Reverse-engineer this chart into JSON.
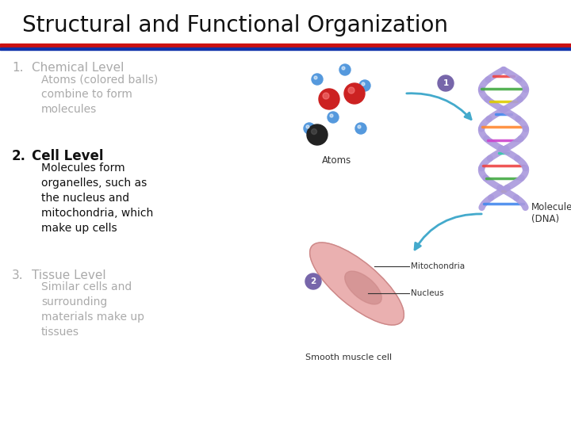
{
  "title": "Structural and Functional Organization",
  "title_fontsize": 20,
  "title_color": "#111111",
  "bg_color": "#ffffff",
  "line1_color": "#cc1111",
  "line2_color": "#1133aa",
  "item1_num": "1.",
  "item1_head": "Chemical Level",
  "item1_body": "Atoms (colored balls)\ncombine to form\nmolecules",
  "item1_color": "#aaaaaa",
  "item2_num": "2.",
  "item2_head": "Cell Level",
  "item2_body": "Molecules form\norganelles, such as\nthe nucleus and\nmitochondria, which\nmake up cells",
  "item2_color": "#111111",
  "item3_num": "3.",
  "item3_head": "Tissue Level",
  "item3_body": "Similar cells and\nsurrounding\nmaterials make up\ntissues",
  "item3_color": "#aaaaaa",
  "atoms_label": "Atoms",
  "molecule_label": "Molecule\n(DNA)",
  "cell_label": "Smooth muscle cell",
  "mito_label": "Mitochondria",
  "nucleus_label": "Nucleus",
  "arrow_color": "#44aacc",
  "badge_color": "#7766aa",
  "blue_atom_color": "#5599dd",
  "red_atom_color": "#cc2222",
  "black_atom_color": "#222222",
  "dna_strand_color": "#aa99dd",
  "dna_ribbon_color": "#bb99cc"
}
